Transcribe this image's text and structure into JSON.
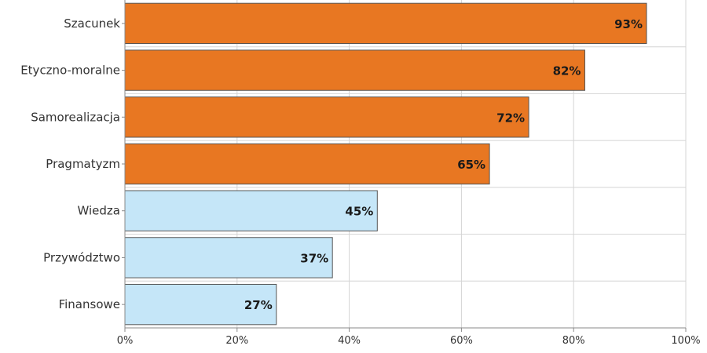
{
  "chart_data": {
    "type": "bar",
    "orientation": "horizontal",
    "title": "",
    "xlabel": "",
    "ylabel": "",
    "xlim": [
      0,
      100
    ],
    "grid": true,
    "categories": [
      "Szacunek",
      "Etyczno-moralne",
      "Samorealizacja",
      "Pragmatyzm",
      "Wiedza",
      "Przywództwo",
      "Finansowe"
    ],
    "values": [
      93,
      82,
      72,
      65,
      45,
      37,
      27
    ],
    "data_labels": [
      "93%",
      "82%",
      "72%",
      "65%",
      "45%",
      "37%",
      "27%"
    ],
    "x_ticks": [
      "0%",
      "20%",
      "40%",
      "60%",
      "80%",
      "100%"
    ],
    "bar_colors": [
      "#e87722",
      "#e87722",
      "#e87722",
      "#e87722",
      "#c5e6f8",
      "#c5e6f8",
      "#c5e6f8"
    ],
    "bar_stroke": "#555555",
    "grid_color": "#d4d4d4",
    "axis_color": "#888888"
  }
}
